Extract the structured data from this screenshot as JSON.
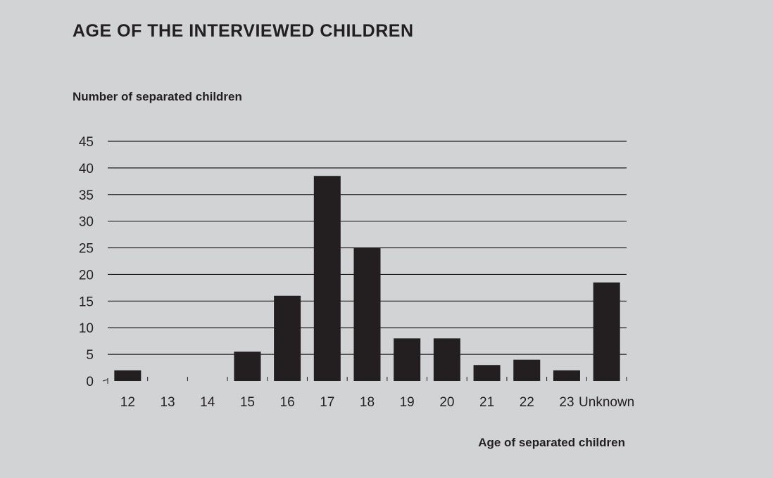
{
  "chart_data": {
    "type": "bar",
    "title": "AGE OF THE INTERVIEWED CHILDREN",
    "ylabel": "Number of separated children",
    "xlabel": "Age of separated children",
    "categories": [
      "12",
      "13",
      "14",
      "15",
      "16",
      "17",
      "18",
      "19",
      "20",
      "21",
      "22",
      "23",
      "Unknown"
    ],
    "values": [
      2,
      0,
      0,
      5.5,
      16,
      38.5,
      25,
      8,
      8,
      3,
      4,
      2,
      18.5
    ],
    "ylim": [
      0,
      45
    ],
    "yticks": [
      "0",
      "5",
      "10",
      "15",
      "20",
      "25",
      "30",
      "35",
      "40",
      "45"
    ],
    "grid": true,
    "colors": {
      "bar": "#231f20",
      "grid": "#231f20",
      "background": "#d1d3d4"
    }
  }
}
